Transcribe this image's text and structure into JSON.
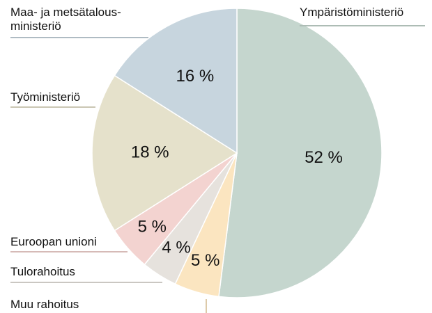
{
  "chart_data": {
    "type": "pie",
    "categories": [
      "Ympäristöministeriö",
      "Muu rahoitus",
      "Tulorahoitus",
      "Euroopan unioni",
      "Työministeriö",
      "Maa- ja metsätalous-\nministeriö"
    ],
    "values": [
      52,
      5,
      4,
      5,
      18,
      16
    ],
    "value_labels": [
      "52 %",
      "5 %",
      "4 %",
      "5 %",
      "18 %",
      "16 %"
    ],
    "colors": [
      "#c5d6ce",
      "#fbe5c0",
      "#e6e2dd",
      "#f3d3d0",
      "#e5e1cb",
      "#c7d5de"
    ]
  }
}
